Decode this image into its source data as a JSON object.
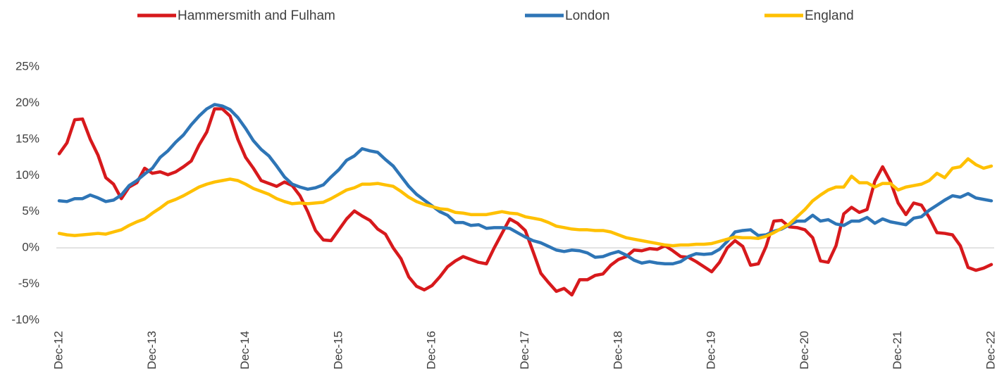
{
  "chart_data": {
    "type": "line",
    "legend": "top",
    "grid": false,
    "categories": [
      "Dec-12",
      null,
      null,
      null,
      null,
      null,
      null,
      null,
      null,
      null,
      null,
      null,
      "Dec-13",
      null,
      null,
      null,
      null,
      null,
      null,
      null,
      null,
      null,
      null,
      null,
      "Dec-14",
      null,
      null,
      null,
      null,
      null,
      null,
      null,
      null,
      null,
      null,
      null,
      "Dec-15",
      null,
      null,
      null,
      null,
      null,
      null,
      null,
      null,
      null,
      null,
      null,
      "Dec-16",
      null,
      null,
      null,
      null,
      null,
      null,
      null,
      null,
      null,
      null,
      null,
      "Dec-17",
      null,
      null,
      null,
      null,
      null,
      null,
      null,
      null,
      null,
      null,
      null,
      "Dec-18",
      null,
      null,
      null,
      null,
      null,
      null,
      null,
      null,
      null,
      null,
      null,
      "Dec-19",
      null,
      null,
      null,
      null,
      null,
      null,
      null,
      null,
      null,
      null,
      null,
      "Dec-20",
      null,
      null,
      null,
      null,
      null,
      null,
      null,
      null,
      null,
      null,
      null,
      "Dec-21",
      null,
      null,
      null,
      null,
      null,
      null,
      null,
      null,
      null,
      null,
      null,
      "Dec-22"
    ],
    "ylim": [
      -10,
      25
    ],
    "yticks": [
      {
        "value": -10,
        "label": "-10%"
      },
      {
        "value": -5,
        "label": "-5%"
      },
      {
        "value": 0,
        "label": "0%"
      },
      {
        "value": 5,
        "label": "5%"
      },
      {
        "value": 10,
        "label": "10%"
      },
      {
        "value": 15,
        "label": "15%"
      },
      {
        "value": 20,
        "label": "20%"
      },
      {
        "value": 25,
        "label": "25%"
      }
    ],
    "series": [
      {
        "name": "Hammersmith and Fulham",
        "color": "#d7191c",
        "values": [
          13,
          14.5,
          17.7,
          17.8,
          15,
          12.8,
          9.7,
          8.8,
          6.8,
          8.4,
          9,
          11,
          10.3,
          10.5,
          10.1,
          10.5,
          11.2,
          12,
          14.2,
          16,
          19.2,
          19.2,
          18.2,
          15,
          12.5,
          11,
          9.3,
          8.9,
          8.5,
          9.1,
          8.6,
          7.2,
          5,
          2.4,
          1.1,
          1,
          2.5,
          4,
          5.1,
          4.4,
          3.8,
          2.6,
          1.9,
          0,
          -1.5,
          -4,
          -5.3,
          -5.8,
          -5.2,
          -4,
          -2.6,
          -1.8,
          -1.2,
          -1.6,
          -2,
          -2.2,
          0,
          2,
          4,
          3.4,
          2.4,
          -0.5,
          -3.5,
          -4.8,
          -6,
          -5.6,
          -6.5,
          -4.4,
          -4.4,
          -3.8,
          -3.6,
          -2.4,
          -1.6,
          -1.2,
          -0.3,
          -0.4,
          -0.1,
          -0.2,
          0.3,
          -0.4,
          -1.2,
          -1.3,
          -1.9,
          -2.6,
          -3.3,
          -2,
          0,
          1,
          0.2,
          -2.4,
          -2.2,
          0.2,
          3.7,
          3.8,
          2.9,
          2.8,
          2.5,
          1.4,
          -1.8,
          -2,
          0.3,
          4.7,
          5.6,
          4.9,
          5.3,
          9.2,
          11.2,
          9.2,
          6.2,
          4.6,
          6.2,
          5.9,
          4.2,
          2.1,
          2,
          1.8,
          0.3,
          -2.7,
          -3.1,
          -2.8,
          -2.3
        ]
      },
      {
        "name": "London",
        "color": "#2e75b6",
        "values": [
          6.5,
          6.4,
          6.8,
          6.8,
          7.3,
          6.9,
          6.4,
          6.6,
          7.3,
          8.6,
          9.3,
          10.2,
          11,
          12.5,
          13.4,
          14.6,
          15.6,
          17,
          18.2,
          19.2,
          19.8,
          19.6,
          19.1,
          18,
          16.5,
          14.8,
          13.6,
          12.7,
          11.3,
          9.8,
          8.8,
          8.4,
          8.1,
          8.3,
          8.7,
          9.8,
          10.8,
          12.1,
          12.7,
          13.7,
          13.4,
          13.2,
          12.2,
          11.3,
          9.9,
          8.5,
          7.4,
          6.6,
          5.8,
          5,
          4.5,
          3.5,
          3.5,
          3.1,
          3.2,
          2.7,
          2.8,
          2.8,
          2.7,
          2.1,
          1.5,
          1,
          0.7,
          0.2,
          -0.3,
          -0.5,
          -0.3,
          -0.4,
          -0.7,
          -1.3,
          -1.2,
          -0.8,
          -0.5,
          -1,
          -1.7,
          -2.1,
          -1.9,
          -2.1,
          -2.2,
          -2.2,
          -1.9,
          -1.2,
          -0.8,
          -0.9,
          -0.8,
          -0.2,
          0.9,
          2.2,
          2.4,
          2.5,
          1.7,
          1.8,
          2.3,
          2.6,
          3.2,
          3.7,
          3.7,
          4.5,
          3.7,
          3.9,
          3.3,
          3.1,
          3.7,
          3.7,
          4.2,
          3.4,
          4,
          3.6,
          3.4,
          3.2,
          4.1,
          4.3,
          5.2,
          5.9,
          6.6,
          7.2,
          7,
          7.5,
          6.9,
          6.7,
          6.5
        ]
      },
      {
        "name": "England",
        "color": "#ffc000",
        "values": [
          2,
          1.8,
          1.7,
          1.8,
          1.9,
          2,
          1.9,
          2.2,
          2.5,
          3.1,
          3.6,
          4,
          4.8,
          5.5,
          6.3,
          6.7,
          7.2,
          7.8,
          8.4,
          8.8,
          9.1,
          9.3,
          9.5,
          9.3,
          8.8,
          8.2,
          7.8,
          7.4,
          6.8,
          6.4,
          6.1,
          6.2,
          6.1,
          6.2,
          6.3,
          6.8,
          7.4,
          8,
          8.3,
          8.8,
          8.8,
          8.9,
          8.7,
          8.5,
          7.8,
          7,
          6.4,
          6,
          5.7,
          5.4,
          5.3,
          4.9,
          4.8,
          4.6,
          4.6,
          4.6,
          4.8,
          5,
          4.8,
          4.7,
          4.3,
          4.1,
          3.9,
          3.5,
          3,
          2.8,
          2.6,
          2.5,
          2.5,
          2.4,
          2.4,
          2.2,
          1.8,
          1.4,
          1.2,
          1,
          0.8,
          0.6,
          0.4,
          0.3,
          0.4,
          0.4,
          0.5,
          0.5,
          0.6,
          0.9,
          1.2,
          1.5,
          1.4,
          1.4,
          1.3,
          1.6,
          2.1,
          2.7,
          3.3,
          4.3,
          5.3,
          6.5,
          7.3,
          8,
          8.4,
          8.4,
          9.9,
          9,
          9,
          8.4,
          8.9,
          8.9,
          8,
          8.4,
          8.6,
          8.8,
          9.3,
          10.3,
          9.7,
          11,
          11.2,
          12.3,
          11.5,
          11,
          11.3
        ]
      }
    ]
  }
}
